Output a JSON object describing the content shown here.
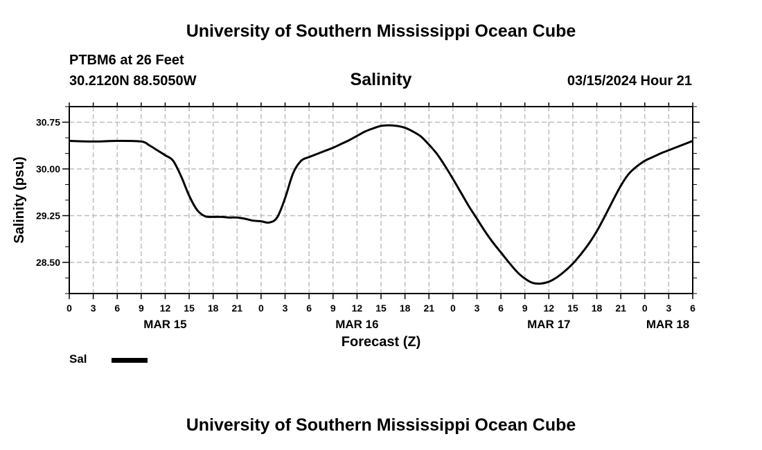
{
  "header": {
    "title": "University of Southern Mississippi Ocean Cube",
    "station": "PTBM6 at 26 Feet",
    "coords": "30.2120N  88.5050W",
    "variable": "Salinity",
    "datetime": "03/15/2024 Hour 21"
  },
  "footer": {
    "title": "University of Southern Mississippi Ocean Cube"
  },
  "legend": {
    "label": "Sal",
    "color": "#000000"
  },
  "chart_data": {
    "type": "line",
    "title": "Salinity",
    "xlabel": "Forecast (Z)",
    "ylabel": "Salinity (psu)",
    "ylim": [
      28.0,
      31.0
    ],
    "xlim": [
      0,
      78
    ],
    "yticks": [
      28.5,
      29.25,
      30.0,
      30.75
    ],
    "ytick_labels": [
      "28.50",
      "29.25",
      "30.00",
      "30.75"
    ],
    "x_tick_hours": [
      0,
      3,
      6,
      9,
      12,
      15,
      18,
      21,
      24,
      27,
      30,
      33,
      36,
      39,
      42,
      45,
      48,
      51,
      54,
      57,
      60,
      63,
      66,
      69,
      72,
      75,
      78
    ],
    "x_tick_labels": [
      "0",
      "3",
      "6",
      "9",
      "12",
      "15",
      "18",
      "21",
      "0",
      "3",
      "6",
      "9",
      "12",
      "15",
      "18",
      "21",
      "0",
      "3",
      "6",
      "9",
      "12",
      "15",
      "18",
      "21",
      "0",
      "3",
      "6"
    ],
    "date_labels": [
      {
        "hour": 12,
        "label": "MAR 15"
      },
      {
        "hour": 36,
        "label": "MAR 16"
      },
      {
        "hour": 60,
        "label": "MAR 17"
      },
      {
        "hour": 84,
        "label": "MAR 18"
      }
    ],
    "grid": true,
    "series": [
      {
        "name": "Sal",
        "color": "#000000",
        "x": [
          0,
          3,
          6,
          9,
          10,
          11,
          12,
          13,
          14,
          15,
          16,
          17,
          18,
          19,
          20,
          21,
          22,
          23,
          24,
          25,
          26,
          27,
          28,
          29,
          30,
          31,
          32,
          33,
          34,
          35,
          36,
          37,
          38,
          39,
          40,
          41,
          42,
          43,
          44,
          45,
          46,
          47,
          48,
          49,
          50,
          51,
          52,
          53,
          54,
          55,
          56,
          57,
          58,
          59,
          60,
          61,
          62,
          63,
          64,
          65,
          66,
          67,
          68,
          69,
          70,
          71,
          72,
          73,
          74,
          75,
          76,
          77,
          78
        ],
        "values": [
          30.45,
          30.44,
          30.45,
          30.44,
          30.38,
          30.3,
          30.22,
          30.13,
          29.88,
          29.57,
          29.34,
          29.24,
          29.23,
          29.23,
          29.22,
          29.22,
          29.2,
          29.17,
          29.16,
          29.14,
          29.22,
          29.53,
          29.93,
          30.13,
          30.19,
          30.24,
          30.29,
          30.34,
          30.4,
          30.46,
          30.53,
          30.6,
          30.65,
          30.69,
          30.7,
          30.69,
          30.66,
          30.6,
          30.52,
          30.39,
          30.24,
          30.05,
          29.84,
          29.62,
          29.4,
          29.2,
          29.0,
          28.82,
          28.66,
          28.5,
          28.35,
          28.24,
          28.17,
          28.16,
          28.19,
          28.26,
          28.36,
          28.48,
          28.63,
          28.8,
          29.0,
          29.24,
          29.49,
          29.73,
          29.92,
          30.04,
          30.13,
          30.19,
          30.25,
          30.3,
          30.35,
          30.4,
          30.45
        ]
      }
    ]
  }
}
